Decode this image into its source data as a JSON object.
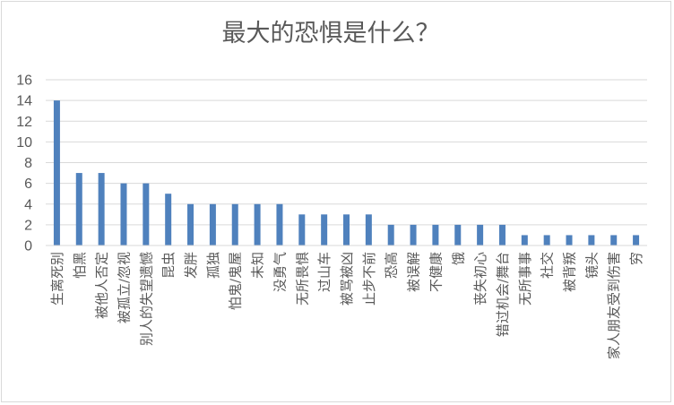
{
  "chart_data": {
    "type": "bar",
    "title": "最大的恐惧是什么？",
    "xlabel": "",
    "ylabel": "",
    "ylim": [
      0,
      16
    ],
    "yticks": [
      "0",
      "2",
      "4",
      "6",
      "8",
      "10",
      "12",
      "14",
      "16"
    ],
    "grid": true,
    "legend": "none",
    "bar_color": "#4f81bd",
    "categories": [
      "生离死别",
      "怕黑",
      "被他人否定",
      "被孤立/忽视",
      "别人的失望遗憾",
      "昆虫",
      "发胖",
      "孤独",
      "怕鬼/鬼屋",
      "未知",
      "没勇气",
      "无所畏惧",
      "过山车",
      "被骂被凶",
      "止步不前",
      "恐高",
      "被误解",
      "不健康",
      "饿",
      "丧失初心",
      "错过机会/舞台",
      "无所事事",
      "社交",
      "被背叛",
      "镜头",
      "家人朋友受到伤害",
      "穷"
    ],
    "values": [
      14,
      7,
      7,
      6,
      6,
      5,
      4,
      4,
      4,
      4,
      4,
      3,
      3,
      3,
      3,
      2,
      2,
      2,
      2,
      2,
      2,
      1,
      1,
      1,
      1,
      1,
      1
    ]
  }
}
